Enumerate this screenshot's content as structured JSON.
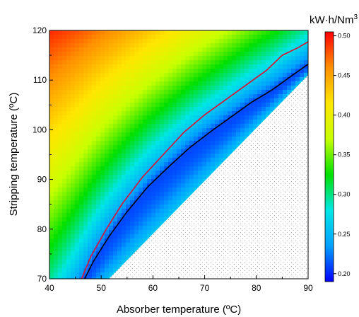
{
  "chart_data": {
    "type": "heatmap",
    "title": "",
    "xlabel": "Absorber temperature (ºC)",
    "ylabel": "Stripping temperature (ºC)",
    "xlim": [
      40,
      90
    ],
    "ylim": [
      70,
      120
    ],
    "x_ticks": [
      "40",
      "50",
      "60",
      "70",
      "80",
      "90"
    ],
    "y_ticks": [
      "70",
      "80",
      "90",
      "100",
      "110",
      "120"
    ],
    "colorbar": {
      "unit": "kW·h/Nm",
      "unit_superscript": "3",
      "min": 0.19,
      "max": 0.505,
      "ticks": [
        "0.20",
        "0.25",
        "0.30",
        "0.35",
        "0.40",
        "0.45",
        "0.50"
      ],
      "colormap": [
        "#0000ff",
        "#00a0ff",
        "#00e6e6",
        "#00e000",
        "#c8ff00",
        "#ffe600",
        "#ff9000",
        "#ff0000"
      ]
    },
    "feasible_boundary": {
      "description_free": true,
      "x": [
        51.5,
        90
      ],
      "y": [
        70,
        111
      ]
    },
    "series": [
      {
        "color": "#e0102e",
        "x": [
          46.2,
          48,
          51,
          54,
          58,
          62,
          66,
          70,
          74,
          78,
          82,
          85,
          88,
          90
        ],
        "y": [
          70,
          74.5,
          80,
          85,
          90.5,
          95,
          99.5,
          103,
          106,
          109,
          112,
          115,
          116.5,
          117.7
        ]
      },
      {
        "color": "#000000",
        "x": [
          46.8,
          48.5,
          51.5,
          55,
          59,
          63,
          67,
          71,
          75,
          79,
          83,
          87,
          90
        ],
        "y": [
          70,
          73.5,
          78.5,
          83.5,
          88.5,
          92.5,
          96.3,
          99.5,
          102.5,
          105.5,
          108,
          111,
          113.2
        ]
      }
    ]
  }
}
